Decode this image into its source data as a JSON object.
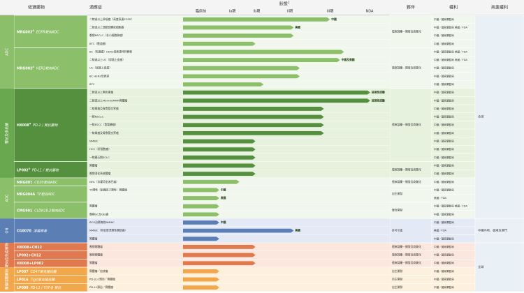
{
  "header": {
    "candidate": "候選藥物",
    "indication": "適應症",
    "status": "狀態",
    "status_sup": "1",
    "phases": [
      "臨床前",
      "Ia期",
      "Ib期",
      "II期",
      "III期",
      "NDA"
    ],
    "partner": "夥伴",
    "rights": "權利",
    "commercial": "商業權利"
  },
  "categories": [
    {
      "label": "ADC",
      "color": "#8cbf6a"
    },
    {
      "label": "雙抗及多抗藥",
      "color": "#6aa84f"
    },
    {
      "label": "ADC",
      "color": "#8cbf6a"
    },
    {
      "label": "ON",
      "color": "#5b7fb5"
    },
    {
      "label": "靶向及免疫藥物",
      "color": "#e07a4e"
    },
    {
      "label": "腫瘤相關藥物",
      "color": "#f2a74b"
    }
  ],
  "products": [
    {
      "name": "MRG003",
      "sup": "4",
      "target": "EGFR靶向ADC",
      "cat": 0,
      "color": "#8cbf6a",
      "bg": "#f1f7ec",
      "partner": "禮來製藥－開發及商業化",
      "comm": "全球",
      "rows": [
        {
          "ind": "二線或以上鼻咽癌（高度表達EGFR）",
          "prog": 0.73,
          "label": "中國",
          "rights": "中國／國家藥監局"
        },
        {
          "ind": "二線或以上頭頸部鱗狀細胞癌",
          "prog": 0.55,
          "label": "美國",
          "rights": "中國／國家藥監局 美國／FDA"
        },
        {
          "ind": "晚期NSCLC（非小細胞肺癌）",
          "prog": 0.55,
          "label": "",
          "rights": "中國／國家藥監局"
        },
        {
          "ind": "BTC（膽道癌）",
          "prog": 0.36,
          "label": "",
          "rights": "中國／國家藥監局"
        }
      ]
    },
    {
      "name": "MRG002",
      "sup": "4",
      "target": "HER2靶向ADC",
      "cat": 0,
      "color": "#8cbf6a",
      "bg": "#f1f7ec",
      "partner": "禮來製藥－開發及商業化",
      "comm": "全球",
      "rows": [
        {
          "ind": "BC（乳腺癌）HER2低表達伴肝轉移",
          "prog": 0.8,
          "label": "",
          "rights": "中國／國家藥監局 美國／FDA"
        },
        {
          "ind": "二線或以上UC（尿路上皮癌）",
          "prog": 0.78,
          "label": "中國及美國",
          "rights": "中國／國家藥監局 美國／FDA"
        },
        {
          "ind": "UC（尿路上皮癌）",
          "prog": 0.58,
          "label": "",
          "rights": "中國／國家藥監局"
        },
        {
          "ind": "BC HER2低表達",
          "prog": 0.58,
          "label": "",
          "rights": "中國／國家藥監局"
        },
        {
          "ind": "BTC",
          "prog": 0.4,
          "label": "",
          "rights": "中國／國家藥監局"
        }
      ]
    },
    {
      "name": "HX008",
      "sup": "4",
      "target": "PD-1 / 雙抗藥物",
      "cat": 1,
      "color": "#55903f",
      "bg": "#e6f2de",
      "partner": "禮來製藥－開發及商業化",
      "comm": "全球",
      "rows": [
        {
          "ind": "二線或以上黑色素瘤",
          "prog": 0.93,
          "label": "註冊性試驗",
          "rights": "中國／國家藥監局"
        },
        {
          "ind": "二線或以上MSI-H/dMMR實體瘤",
          "prog": 0.93,
          "label": "註冊性試驗",
          "rights": "中國／國家藥監局"
        },
        {
          "ind": "二線胃癌及胃食管交界癌",
          "prog": 0.7,
          "label": "",
          "rights": "中國／國家藥監局"
        },
        {
          "ind": "一線NSCLC",
          "prog": 0.7,
          "label": "",
          "rights": "中國／國家藥監局"
        },
        {
          "ind": "一線ESCC（食管鱗癌）",
          "prog": 0.7,
          "label": "",
          "rights": "中國／國家藥監局"
        },
        {
          "ind": "一線胃癌及胃食管交界癌",
          "prog": 0.7,
          "label": "",
          "rights": "中國／國家藥監局"
        },
        {
          "ind": "NMIBC",
          "prog": 0.36,
          "label": "",
          "rights": "中國／國家藥監局"
        },
        {
          "ind": "HCC（肝細胞癌）",
          "prog": 0.36,
          "label": "",
          "rights": "中國／國家藥監局"
        },
        {
          "ind": "一線廣泛期SCLC",
          "prog": 0.36,
          "label": "",
          "rights": "中國／國家藥監局"
        }
      ]
    },
    {
      "name": "LP002",
      "sup": "4",
      "target": "PD-L1 / 雙抗藥物",
      "cat": 1,
      "color": "#55903f",
      "bg": "#e6f2de",
      "partner": "禮來製藥－開發及商業化",
      "comm": "全球",
      "rows": [
        {
          "ind": "實體瘤",
          "prog": 0.36,
          "label": "",
          "rights": "中國／國家藥監局"
        },
        {
          "ind": "晚期消化系統腫瘤",
          "prog": 0.36,
          "label": "",
          "rights": "中國／國家藥監局"
        }
      ]
    },
    {
      "name": "MRG001",
      "sup": "",
      "target": "CD20靶向ADC",
      "cat": 2,
      "color": "#8cbf6a",
      "bg": "#f1f7ec",
      "partner": "禮來製藥－開發及商業化",
      "comm": "全球",
      "rows": [
        {
          "ind": "NHL（非霍奇金淋巴瘤）",
          "prog": 0.28,
          "label": "",
          "rights": "中國／國家藥監局"
        }
      ]
    },
    {
      "name": "MRG004A",
      "sup": "",
      "target": "TF靶向ADC",
      "cat": 2,
      "color": "#8cbf6a",
      "bg": "#f1f7ec",
      "partner": "自主開發",
      "comm": "全球",
      "rows": [
        {
          "ind": "TF陽性（組織因子陽性）實體瘤",
          "prog": 0.18,
          "label": "中國",
          "rights": "中國／國家藥監局"
        },
        {
          "ind": "",
          "prog": 0.18,
          "label": "美國",
          "rights": "美國／FDA"
        }
      ]
    },
    {
      "name": "CMG901",
      "sup": "",
      "target": "CLDN18.2靶向ADC",
      "cat": 2,
      "color": "#8cbf6a",
      "bg": "#f1f7ec",
      "partner": "聯合開發",
      "comm": "全球",
      "rows": [
        {
          "ind": "實體瘤",
          "prog": 0.18,
          "label": "",
          "rights": "中國／國家藥監局 美國／FDA"
        },
        {
          "ind": "晚期GC及GEJ癌",
          "prog": 0.18,
          "label": "",
          "rights": "中國／國家藥監局"
        }
      ]
    },
    {
      "name": "CG0070",
      "sup": "",
      "target": "溶瘤病毒",
      "cat": 3,
      "color": "#5b7fb5",
      "bg": "#e3eaf5",
      "partner": "許可引進",
      "comm": "中國內地、香港及澳門",
      "rows": [
        {
          "ind": "BCG治療無效NMIBC",
          "prog": 0.18,
          "label": "中國",
          "rights": "中國／國家藥監局"
        },
        {
          "ind": "NMIBC（非肌層浸潤性膀胱癌）",
          "prog": 0.55,
          "label": "美國",
          "rights": "美國／FDA"
        },
        {
          "ind": "實體瘤",
          "prog": 0.18,
          "label": "",
          "rights": "中國／國家藥監局"
        }
      ]
    },
    {
      "name": "HX008+CH12",
      "sup": "",
      "target": "",
      "cat": 4,
      "color": "#e07a4e",
      "bg": "#fbe7dd",
      "partner": "禮來製藥－開發及商業化",
      "comm": "全球",
      "rows": [
        {
          "ind": "晚期實體瘤",
          "prog": 0.36,
          "label": "",
          "rights": "中國／國家藥監局"
        }
      ]
    },
    {
      "name": "LP002+CH12",
      "sup": "",
      "target": "",
      "cat": 4,
      "color": "#e07a4e",
      "bg": "#fbe7dd",
      "partner": "禮來製藥－開發及商業化",
      "comm": "全球",
      "rows": [
        {
          "ind": "晚期實體瘤",
          "prog": 0.36,
          "label": "",
          "rights": "中國／國家藥監局"
        }
      ]
    },
    {
      "name": "HX008+LP002",
      "sup": "",
      "target": "",
      "cat": 4,
      "color": "#e07a4e",
      "bg": "#fbe7dd",
      "partner": "禮來製藥－開發及商業化",
      "comm": "全球",
      "rows": [
        {
          "ind": "實體瘤",
          "prog": 0.36,
          "label": "",
          "rights": "中國／國家藥監局"
        }
      ]
    },
    {
      "name": "LP007",
      "sup": "",
      "target": "CD47單克隆抗體",
      "cat": 5,
      "color": "#f2a74b",
      "bg": "#fdf0dc",
      "partner": "自主開發",
      "comm": "全球",
      "rows": [
        {
          "ind": "實體瘤／血液瘤",
          "prog": 0.18,
          "label": "",
          "rights": "中國／國家藥監局"
        }
      ]
    },
    {
      "name": "LP016",
      "sup": "",
      "target": "Tigit單克隆抗體",
      "cat": 5,
      "color": "#f2a74b",
      "bg": "#fdf0dc",
      "partner": "自主開發",
      "comm": "全球",
      "rows": [
        {
          "ind": "PD-(L)1預治／實體瘤",
          "prog": 0.18,
          "label": "",
          "rights": "中國／國家藥監局"
        }
      ]
    },
    {
      "name": "LP008",
      "sup": "",
      "target": "PD-L1 / TGF-β 雙抗",
      "cat": 5,
      "color": "#f2a74b",
      "bg": "#fdf0dc",
      "partner": "自主開發",
      "comm": "全球",
      "rows": [
        {
          "ind": "PD-L1預治／實體瘤",
          "prog": 0.18,
          "label": "",
          "rights": "中國／國家藥監局"
        }
      ]
    }
  ]
}
